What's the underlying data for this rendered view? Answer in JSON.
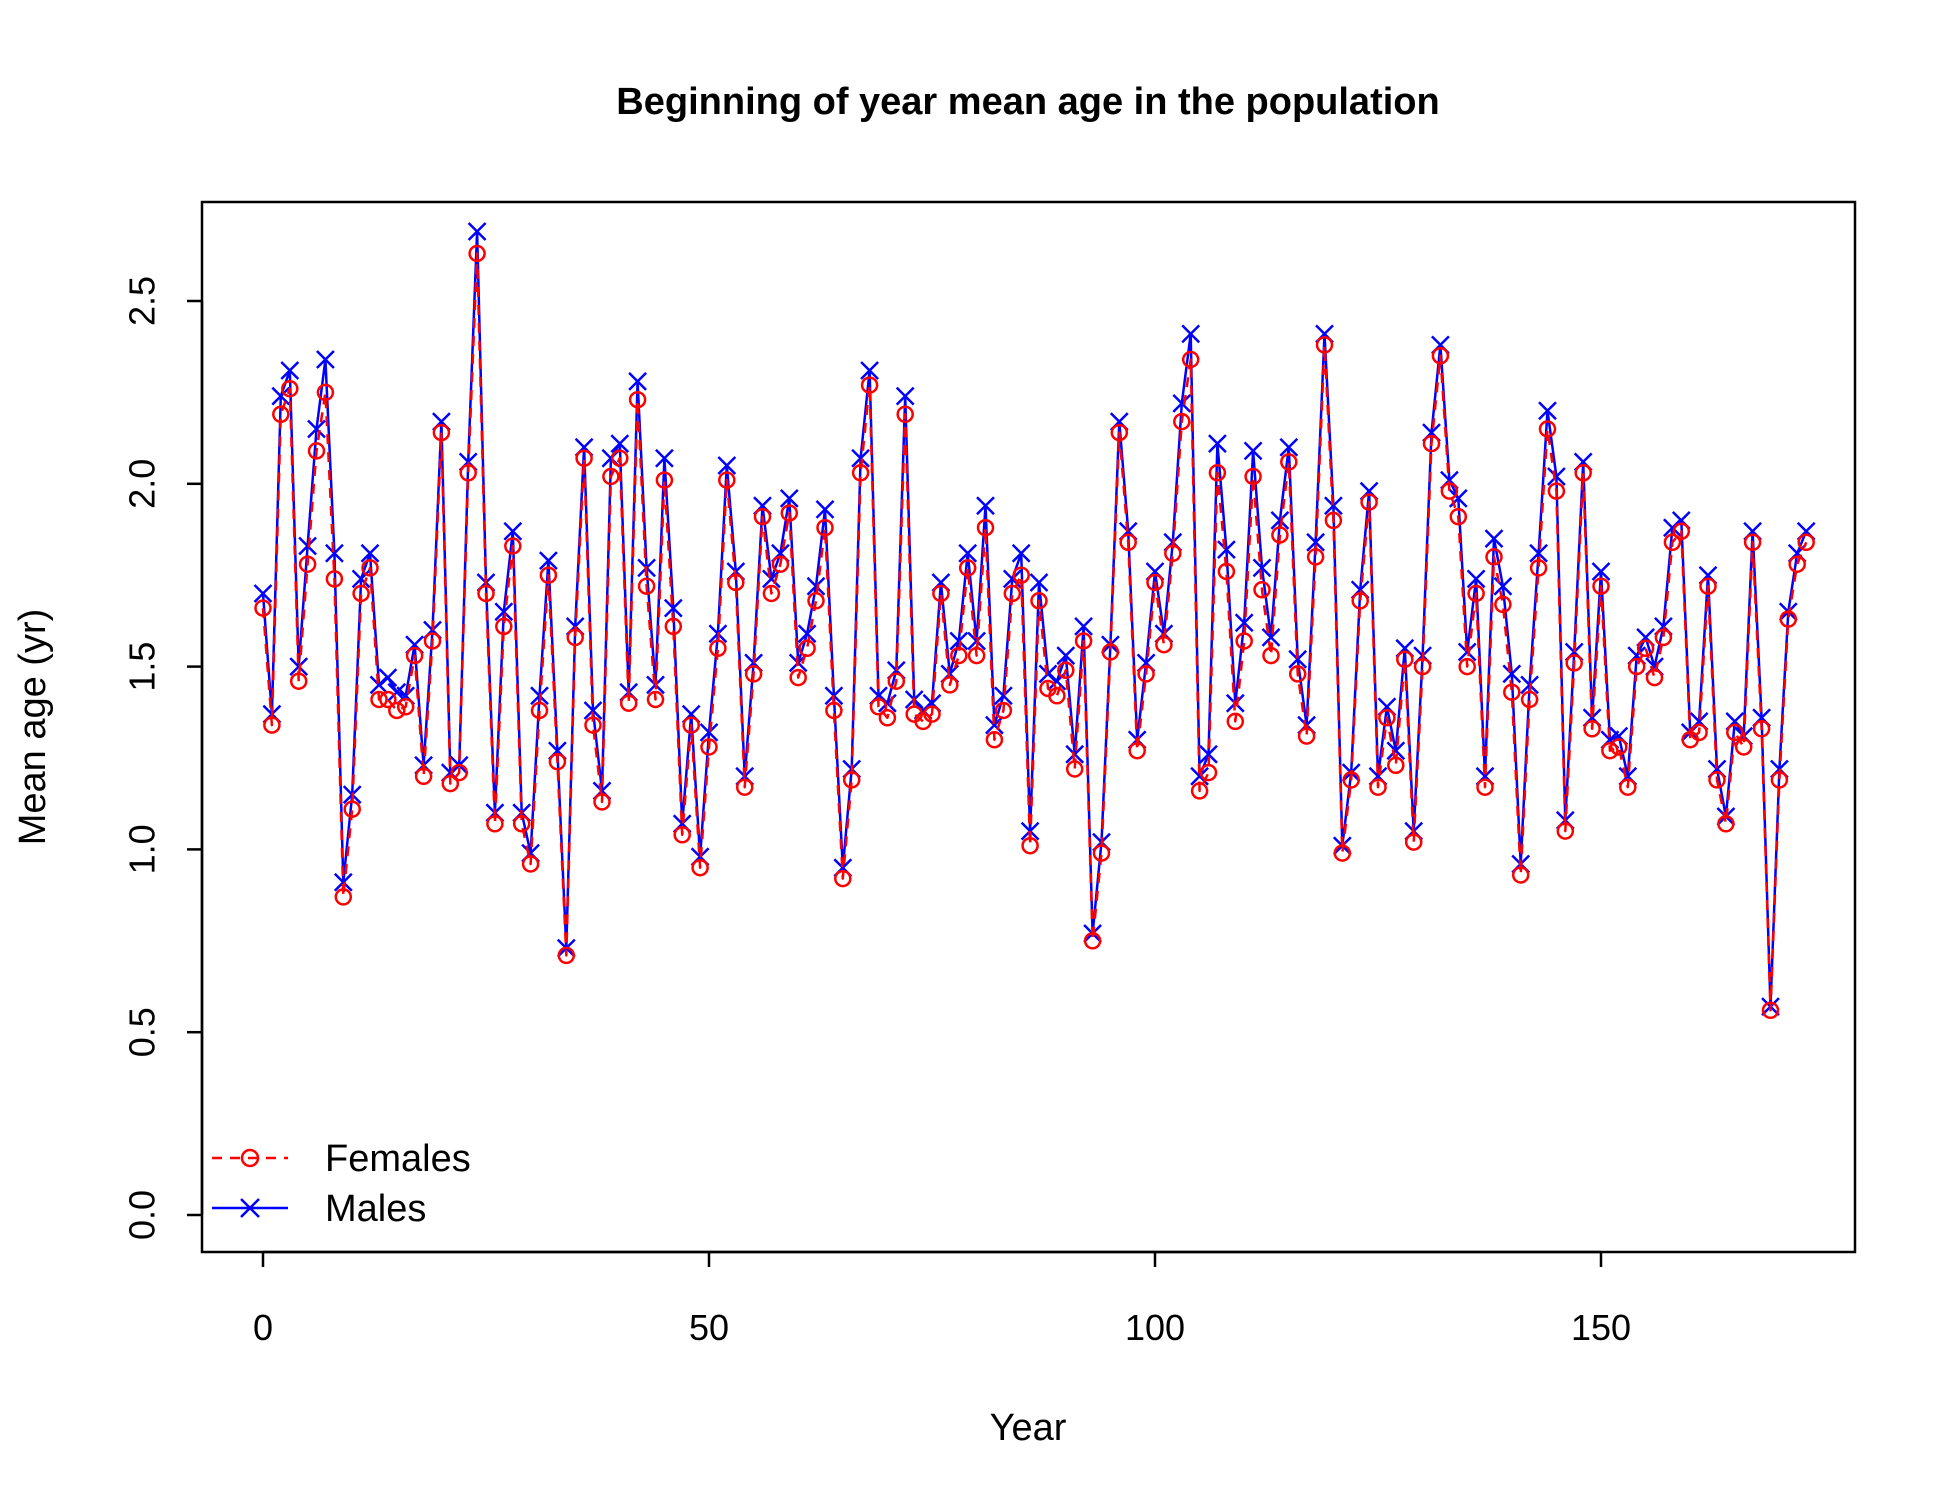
{
  "chart_data": {
    "type": "line",
    "title": "Beginning of year mean age in the population",
    "xlabel": "Year",
    "ylabel": "Mean age (yr)",
    "xlim": [
      0,
      174
    ],
    "ylim": [
      0,
      2.7
    ],
    "x_ticks": [
      "0",
      "50",
      "100",
      "150"
    ],
    "y_ticks": [
      "0.0",
      "0.5",
      "1.0",
      "1.5",
      "2.0",
      "2.5"
    ],
    "grid": false,
    "legend_position": "bottom-left",
    "x_start": 0,
    "series": [
      {
        "name": "Females",
        "color": "#ff0000",
        "line_style": "dashed",
        "marker": "circle",
        "values": [
          1.66,
          1.34,
          2.19,
          2.26,
          1.46,
          1.78,
          2.09,
          2.25,
          1.74,
          0.87,
          1.11,
          1.7,
          1.77,
          1.41,
          1.41,
          1.38,
          1.39,
          1.53,
          1.2,
          1.57,
          2.14,
          1.18,
          1.21,
          2.03,
          2.63,
          1.7,
          1.07,
          1.61,
          1.83,
          1.07,
          0.96,
          1.38,
          1.75,
          1.24,
          0.71,
          1.58,
          2.07,
          1.34,
          1.13,
          2.02,
          2.07,
          1.4,
          2.23,
          1.72,
          1.41,
          2.01,
          1.61,
          1.04,
          1.34,
          0.95,
          1.28,
          1.55,
          2.01,
          1.73,
          1.17,
          1.48,
          1.91,
          1.7,
          1.78,
          1.92,
          1.47,
          1.55,
          1.68,
          1.88,
          1.38,
          0.92,
          1.19,
          2.03,
          2.27,
          1.39,
          1.36,
          1.46,
          2.19,
          1.37,
          1.35,
          1.37,
          1.7,
          1.45,
          1.53,
          1.77,
          1.53,
          1.88,
          1.3,
          1.38,
          1.7,
          1.75,
          1.01,
          1.68,
          1.44,
          1.42,
          1.49,
          1.22,
          1.57,
          0.75,
          0.99,
          1.54,
          2.14,
          1.84,
          1.27,
          1.48,
          1.73,
          1.56,
          1.81,
          2.17,
          2.34,
          1.16,
          1.21,
          2.03,
          1.76,
          1.35,
          1.57,
          2.02,
          1.71,
          1.53,
          1.86,
          2.06,
          1.48,
          1.31,
          1.8,
          2.38,
          1.9,
          0.99,
          1.19,
          1.68,
          1.95,
          1.17,
          1.36,
          1.23,
          1.52,
          1.02,
          1.5,
          2.11,
          2.35,
          1.98,
          1.91,
          1.5,
          1.7,
          1.17,
          1.8,
          1.67,
          1.43,
          0.93,
          1.41,
          1.77,
          2.15,
          1.98,
          1.05,
          1.51,
          2.03,
          1.33,
          1.72,
          1.27,
          1.28,
          1.17,
          1.5,
          1.55,
          1.47,
          1.58,
          1.84,
          1.87,
          1.3,
          1.32,
          1.72,
          1.19,
          1.07,
          1.32,
          1.28,
          1.84,
          1.33,
          0.56,
          1.19,
          1.63,
          1.78,
          1.84
        ]
      },
      {
        "name": "Males",
        "color": "#0000ff",
        "line_style": "solid",
        "marker": "x",
        "values": [
          1.7,
          1.37,
          2.24,
          2.31,
          1.5,
          1.83,
          2.15,
          2.34,
          1.81,
          0.91,
          1.15,
          1.74,
          1.81,
          1.45,
          1.47,
          1.43,
          1.42,
          1.56,
          1.23,
          1.6,
          2.17,
          1.21,
          1.23,
          2.06,
          2.69,
          1.73,
          1.1,
          1.65,
          1.87,
          1.1,
          0.99,
          1.42,
          1.79,
          1.27,
          0.73,
          1.61,
          2.1,
          1.38,
          1.16,
          2.07,
          2.11,
          1.43,
          2.28,
          1.77,
          1.45,
          2.07,
          1.66,
          1.07,
          1.37,
          0.98,
          1.32,
          1.59,
          2.05,
          1.76,
          1.2,
          1.51,
          1.94,
          1.74,
          1.81,
          1.96,
          1.51,
          1.59,
          1.72,
          1.93,
          1.42,
          0.95,
          1.22,
          2.07,
          2.31,
          1.42,
          1.4,
          1.49,
          2.24,
          1.41,
          1.38,
          1.4,
          1.73,
          1.48,
          1.57,
          1.81,
          1.57,
          1.94,
          1.34,
          1.42,
          1.74,
          1.81,
          1.05,
          1.73,
          1.48,
          1.46,
          1.53,
          1.26,
          1.61,
          0.77,
          1.02,
          1.56,
          2.17,
          1.87,
          1.3,
          1.51,
          1.76,
          1.59,
          1.84,
          2.22,
          2.41,
          1.2,
          1.26,
          2.11,
          1.82,
          1.4,
          1.62,
          2.09,
          1.77,
          1.58,
          1.9,
          2.1,
          1.52,
          1.34,
          1.84,
          2.41,
          1.94,
          1.01,
          1.21,
          1.71,
          1.98,
          1.2,
          1.39,
          1.27,
          1.55,
          1.05,
          1.53,
          2.14,
          2.38,
          2.01,
          1.96,
          1.54,
          1.74,
          1.2,
          1.85,
          1.72,
          1.48,
          0.96,
          1.45,
          1.81,
          2.2,
          2.02,
          1.08,
          1.54,
          2.06,
          1.36,
          1.76,
          1.3,
          1.31,
          1.2,
          1.53,
          1.58,
          1.5,
          1.61,
          1.88,
          1.9,
          1.32,
          1.35,
          1.75,
          1.22,
          1.09,
          1.35,
          1.31,
          1.87,
          1.36,
          0.57,
          1.22,
          1.65,
          1.81,
          1.87
        ]
      }
    ]
  }
}
